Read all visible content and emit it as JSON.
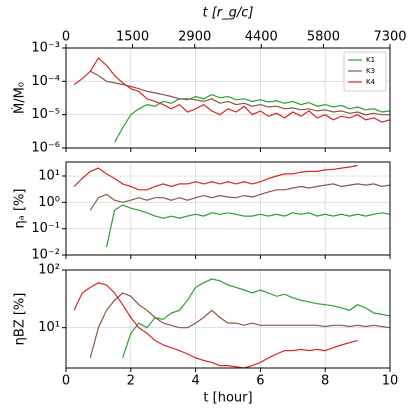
{
  "chart_data": [
    {
      "type": "line",
      "x2label": "t [r_g/c]",
      "x2lim": [
        0,
        7300
      ],
      "x2ticks": [
        0,
        1500,
        2900,
        4400,
        5800,
        7300
      ],
      "ylabel": "Ṁ/M₀",
      "yscale": "log",
      "ylim": [
        1e-06,
        0.001
      ],
      "yticks": [
        {
          "value": 1e-06,
          "label": "10⁻⁶"
        },
        {
          "value": 1e-05,
          "label": "10⁻⁵"
        },
        {
          "value": 0.0001,
          "label": "10⁻⁴"
        },
        {
          "value": 0.001,
          "label": "10⁻³"
        }
      ],
      "xlim": [
        0,
        10
      ],
      "xticks": [
        0,
        2,
        4,
        6,
        8,
        10
      ],
      "grid": true,
      "legend": "upper right",
      "x": [
        0,
        0.25,
        0.5,
        0.75,
        1,
        1.25,
        1.5,
        1.75,
        2,
        2.25,
        2.5,
        2.75,
        3,
        3.25,
        3.5,
        3.75,
        4,
        4.25,
        4.5,
        4.75,
        5,
        5.25,
        5.5,
        5.75,
        6,
        6.25,
        6.5,
        6.75,
        7,
        7.25,
        7.5,
        7.75,
        8,
        8.25,
        8.5,
        8.75,
        9,
        9.25,
        9.5,
        9.75,
        10
      ],
      "series": [
        {
          "name": "K1",
          "color": "#2ca02c",
          "values": [
            null,
            null,
            null,
            null,
            null,
            null,
            1.5e-06,
            4e-06,
            1e-05,
            1.5e-05,
            2e-05,
            1.8e-05,
            2.5e-05,
            2.2e-05,
            3e-05,
            2.8e-05,
            3.5e-05,
            3e-05,
            4e-05,
            3.2e-05,
            3.5e-05,
            2.8e-05,
            3e-05,
            2.5e-05,
            2.8e-05,
            2.4e-05,
            2.6e-05,
            2.2e-05,
            2.5e-05,
            2e-05,
            2.3e-05,
            1.8e-05,
            2e-05,
            1.7e-05,
            1.9e-05,
            1.5e-05,
            1.7e-05,
            1.4e-05,
            1.5e-05,
            1.2e-05,
            1.3e-05
          ]
        },
        {
          "name": "K3",
          "color": "#8c564b",
          "values": [
            null,
            null,
            null,
            0.0002,
            0.00015,
            0.0001,
            9e-05,
            8e-05,
            7e-05,
            6e-05,
            5e-05,
            4.5e-05,
            4e-05,
            3.5e-05,
            3e-05,
            3e-05,
            2.8e-05,
            2.5e-05,
            3e-05,
            2.2e-05,
            2.5e-05,
            2e-05,
            2.2e-05,
            1.8e-05,
            2e-05,
            1.7e-05,
            1.8e-05,
            1.5e-05,
            1.6e-05,
            1.4e-05,
            1.5e-05,
            1.3e-05,
            1.4e-05,
            1.2e-05,
            1.3e-05,
            1.1e-05,
            1.2e-05,
            1e-05,
            1.1e-05,
            1e-05,
            1e-05
          ]
        },
        {
          "name": "K4",
          "color": "#d62728",
          "values": [
            null,
            8e-05,
            0.00012,
            0.0002,
            0.0005,
            0.0003,
            0.00015,
            9e-05,
            6e-05,
            5e-05,
            3e-05,
            2.5e-05,
            2e-05,
            1.5e-05,
            2e-05,
            1.2e-05,
            1.5e-05,
            2e-05,
            1.3e-05,
            1e-05,
            1.5e-05,
            1.2e-05,
            1.8e-05,
            1e-05,
            1.3e-05,
            9e-06,
            1.1e-05,
            8e-06,
            1.2e-05,
            9e-06,
            1.3e-05,
            8e-06,
            1e-05,
            7e-06,
            9e-06,
            8e-06,
            1e-05,
            7e-06,
            8e-06,
            6e-06,
            7e-06
          ]
        }
      ]
    },
    {
      "type": "line",
      "ylabel": "ηₐ [%]",
      "yscale": "log",
      "ylim": [
        0.01,
        34
      ],
      "yticks": [
        {
          "value": 0.01,
          "label": "10⁻²"
        },
        {
          "value": 0.1,
          "label": "10⁻¹"
        },
        {
          "value": 1,
          "label": "10⁰"
        },
        {
          "value": 10,
          "label": "10¹"
        }
      ],
      "xlim": [
        0,
        10
      ],
      "xticks": [
        0,
        2,
        4,
        6,
        8,
        10
      ],
      "grid": true,
      "x": [
        0,
        0.25,
        0.5,
        0.75,
        1,
        1.25,
        1.5,
        1.75,
        2,
        2.25,
        2.5,
        2.75,
        3,
        3.25,
        3.5,
        3.75,
        4,
        4.25,
        4.5,
        4.75,
        5,
        5.25,
        5.5,
        5.75,
        6,
        6.25,
        6.5,
        6.75,
        7,
        7.25,
        7.5,
        7.75,
        8,
        8.25,
        8.5,
        8.75,
        9,
        9.25,
        9.5,
        9.75,
        10
      ],
      "series": [
        {
          "name": "K1",
          "color": "#2ca02c",
          "values": [
            null,
            null,
            null,
            null,
            null,
            0.02,
            0.5,
            0.8,
            0.6,
            0.5,
            0.4,
            0.3,
            0.25,
            0.3,
            0.25,
            0.3,
            0.35,
            0.3,
            0.4,
            0.35,
            0.4,
            0.35,
            0.3,
            0.3,
            0.35,
            0.3,
            0.35,
            0.3,
            0.4,
            0.35,
            0.4,
            0.3,
            0.35,
            0.3,
            0.35,
            0.3,
            0.35,
            0.3,
            0.35,
            0.4,
            0.35
          ]
        },
        {
          "name": "K3",
          "color": "#8c564b",
          "values": [
            null,
            null,
            null,
            0.5,
            1.5,
            2,
            1.2,
            1,
            1.2,
            1.5,
            1.2,
            1.5,
            1.5,
            1.2,
            1.5,
            1.2,
            1.5,
            1.8,
            1.5,
            1.8,
            1.6,
            1.5,
            1.8,
            1.6,
            2,
            2.5,
            3,
            3,
            3.5,
            4,
            3.5,
            4,
            4.5,
            5,
            4,
            4.5,
            5,
            4.5,
            5,
            4,
            4.5
          ]
        },
        {
          "name": "K4",
          "color": "#d62728",
          "values": [
            null,
            4,
            8,
            15,
            20,
            12,
            8,
            5,
            4,
            3,
            3,
            4,
            5,
            4,
            5,
            5,
            6,
            5,
            6,
            5,
            6,
            5,
            6,
            5,
            6,
            8,
            10,
            12,
            12,
            14,
            15,
            15,
            17,
            18,
            20,
            22,
            25,
            null,
            null,
            null,
            null
          ]
        }
      ]
    },
    {
      "type": "line",
      "ylabel": "ηBZ [%]",
      "yscale": "log",
      "ylim": [
        2,
        100
      ],
      "yticks": [
        {
          "value": 10,
          "label": "10¹"
        },
        {
          "value": 100,
          "label": "10²"
        }
      ],
      "xlabel": "t [hour]",
      "xlim": [
        0,
        10
      ],
      "xticks": [
        0,
        2,
        4,
        6,
        8,
        10
      ],
      "grid": true,
      "x": [
        0,
        0.25,
        0.5,
        0.75,
        1,
        1.25,
        1.5,
        1.75,
        2,
        2.25,
        2.5,
        2.75,
        3,
        3.25,
        3.5,
        3.75,
        4,
        4.25,
        4.5,
        4.75,
        5,
        5.25,
        5.5,
        5.75,
        6,
        6.25,
        6.5,
        6.75,
        7,
        7.25,
        7.5,
        7.75,
        8,
        8.25,
        8.5,
        8.75,
        9,
        9.25,
        9.5,
        9.75,
        10
      ],
      "series": [
        {
          "name": "K1",
          "color": "#2ca02c",
          "values": [
            null,
            null,
            null,
            null,
            null,
            null,
            null,
            3,
            8,
            12,
            10,
            15,
            14,
            18,
            20,
            30,
            50,
            60,
            70,
            65,
            55,
            50,
            45,
            40,
            45,
            40,
            35,
            38,
            33,
            30,
            28,
            26,
            25,
            24,
            22,
            20,
            25,
            22,
            18,
            17,
            16
          ]
        },
        {
          "name": "K3",
          "color": "#8c564b",
          "values": [
            null,
            null,
            null,
            3,
            10,
            20,
            30,
            40,
            35,
            25,
            20,
            15,
            12,
            11,
            10,
            10,
            12,
            15,
            20,
            15,
            12,
            12,
            11,
            12,
            11,
            11,
            11,
            11,
            11,
            11,
            11,
            11,
            10.5,
            11,
            11,
            10.5,
            11,
            10.5,
            11,
            10.5,
            10
          ]
        },
        {
          "name": "K4",
          "color": "#d62728",
          "values": [
            null,
            20,
            40,
            50,
            60,
            55,
            40,
            25,
            15,
            10,
            8,
            6,
            5,
            4.5,
            4,
            3.5,
            3,
            2.7,
            2.5,
            2.2,
            2.2,
            2.1,
            2,
            2.2,
            2.5,
            3,
            3.5,
            4,
            4,
            4.2,
            4,
            4.2,
            4,
            4.5,
            5,
            5.5,
            6,
            null,
            null,
            null,
            null
          ]
        }
      ]
    }
  ]
}
